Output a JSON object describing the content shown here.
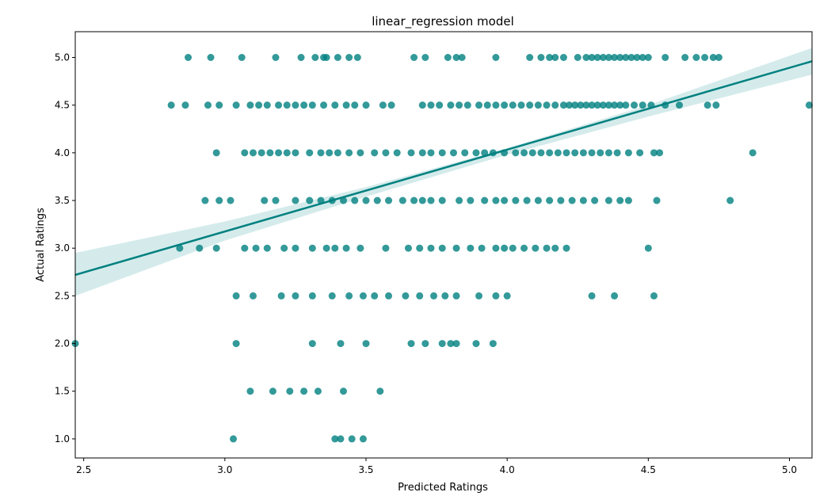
{
  "chart_data": {
    "type": "scatter",
    "title": "linear_regression model",
    "xlabel": "Predicted Ratings",
    "ylabel": "Actual Ratings",
    "xlim": [
      2.47,
      5.08
    ],
    "ylim": [
      0.8,
      5.27
    ],
    "xticks": [
      "2.5",
      "3.0",
      "3.5",
      "4.0",
      "4.5",
      "5.0"
    ],
    "yticks": [
      "1.0",
      "1.5",
      "2.0",
      "2.5",
      "3.0",
      "3.5",
      "4.0",
      "4.5",
      "5.0"
    ],
    "grid": false,
    "legend": "none",
    "point_color": "#008080",
    "line_color": "#008080",
    "band_color": "#b2dada",
    "regression_line": {
      "x": [
        2.47,
        5.08
      ],
      "y": [
        2.72,
        4.96
      ]
    },
    "confidence_band": {
      "x": [
        2.47,
        3.0,
        3.5,
        4.0,
        4.5,
        5.08
      ],
      "lower": [
        2.5,
        3.08,
        3.54,
        3.98,
        4.38,
        4.82
      ],
      "upper": [
        2.95,
        3.28,
        3.64,
        4.05,
        4.5,
        5.1
      ]
    },
    "points": [
      [
        2.87,
        5.0
      ],
      [
        2.95,
        5.0
      ],
      [
        3.06,
        5.0
      ],
      [
        3.18,
        5.0
      ],
      [
        3.27,
        5.0
      ],
      [
        3.32,
        5.0
      ],
      [
        3.35,
        5.0
      ],
      [
        3.36,
        5.0
      ],
      [
        3.4,
        5.0
      ],
      [
        3.44,
        5.0
      ],
      [
        3.47,
        5.0
      ],
      [
        3.67,
        5.0
      ],
      [
        3.71,
        5.0
      ],
      [
        3.79,
        5.0
      ],
      [
        3.82,
        5.0
      ],
      [
        3.84,
        5.0
      ],
      [
        3.96,
        5.0
      ],
      [
        4.08,
        5.0
      ],
      [
        4.12,
        5.0
      ],
      [
        4.15,
        5.0
      ],
      [
        4.17,
        5.0
      ],
      [
        4.2,
        5.0
      ],
      [
        4.25,
        5.0
      ],
      [
        4.28,
        5.0
      ],
      [
        4.3,
        5.0
      ],
      [
        4.32,
        5.0
      ],
      [
        4.34,
        5.0
      ],
      [
        4.36,
        5.0
      ],
      [
        4.38,
        5.0
      ],
      [
        4.4,
        5.0
      ],
      [
        4.42,
        5.0
      ],
      [
        4.44,
        5.0
      ],
      [
        4.46,
        5.0
      ],
      [
        4.48,
        5.0
      ],
      [
        4.5,
        5.0
      ],
      [
        4.56,
        5.0
      ],
      [
        4.63,
        5.0
      ],
      [
        4.67,
        5.0
      ],
      [
        4.7,
        5.0
      ],
      [
        4.73,
        5.0
      ],
      [
        4.75,
        5.0
      ],
      [
        2.81,
        4.5
      ],
      [
        2.86,
        4.5
      ],
      [
        2.94,
        4.5
      ],
      [
        2.98,
        4.5
      ],
      [
        3.04,
        4.5
      ],
      [
        3.09,
        4.5
      ],
      [
        3.12,
        4.5
      ],
      [
        3.15,
        4.5
      ],
      [
        3.19,
        4.5
      ],
      [
        3.22,
        4.5
      ],
      [
        3.25,
        4.5
      ],
      [
        3.28,
        4.5
      ],
      [
        3.31,
        4.5
      ],
      [
        3.35,
        4.5
      ],
      [
        3.39,
        4.5
      ],
      [
        3.43,
        4.5
      ],
      [
        3.46,
        4.5
      ],
      [
        3.5,
        4.5
      ],
      [
        3.56,
        4.5
      ],
      [
        3.59,
        4.5
      ],
      [
        3.7,
        4.5
      ],
      [
        3.73,
        4.5
      ],
      [
        3.76,
        4.5
      ],
      [
        3.8,
        4.5
      ],
      [
        3.83,
        4.5
      ],
      [
        3.86,
        4.5
      ],
      [
        3.9,
        4.5
      ],
      [
        3.93,
        4.5
      ],
      [
        3.96,
        4.5
      ],
      [
        3.99,
        4.5
      ],
      [
        4.02,
        4.5
      ],
      [
        4.05,
        4.5
      ],
      [
        4.08,
        4.5
      ],
      [
        4.11,
        4.5
      ],
      [
        4.14,
        4.5
      ],
      [
        4.17,
        4.5
      ],
      [
        4.2,
        4.5
      ],
      [
        4.22,
        4.5
      ],
      [
        4.24,
        4.5
      ],
      [
        4.26,
        4.5
      ],
      [
        4.28,
        4.5
      ],
      [
        4.3,
        4.5
      ],
      [
        4.32,
        4.5
      ],
      [
        4.34,
        4.5
      ],
      [
        4.36,
        4.5
      ],
      [
        4.38,
        4.5
      ],
      [
        4.4,
        4.5
      ],
      [
        4.42,
        4.5
      ],
      [
        4.45,
        4.5
      ],
      [
        4.48,
        4.5
      ],
      [
        4.51,
        4.5
      ],
      [
        4.56,
        4.5
      ],
      [
        4.61,
        4.5
      ],
      [
        4.71,
        4.5
      ],
      [
        4.74,
        4.5
      ],
      [
        5.07,
        4.5
      ],
      [
        2.97,
        4.0
      ],
      [
        3.07,
        4.0
      ],
      [
        3.1,
        4.0
      ],
      [
        3.13,
        4.0
      ],
      [
        3.16,
        4.0
      ],
      [
        3.19,
        4.0
      ],
      [
        3.22,
        4.0
      ],
      [
        3.25,
        4.0
      ],
      [
        3.3,
        4.0
      ],
      [
        3.34,
        4.0
      ],
      [
        3.37,
        4.0
      ],
      [
        3.4,
        4.0
      ],
      [
        3.44,
        4.0
      ],
      [
        3.48,
        4.0
      ],
      [
        3.53,
        4.0
      ],
      [
        3.57,
        4.0
      ],
      [
        3.61,
        4.0
      ],
      [
        3.66,
        4.0
      ],
      [
        3.7,
        4.0
      ],
      [
        3.73,
        4.0
      ],
      [
        3.77,
        4.0
      ],
      [
        3.81,
        4.0
      ],
      [
        3.85,
        4.0
      ],
      [
        3.89,
        4.0
      ],
      [
        3.92,
        4.0
      ],
      [
        3.95,
        4.0
      ],
      [
        3.99,
        4.0
      ],
      [
        4.03,
        4.0
      ],
      [
        4.06,
        4.0
      ],
      [
        4.09,
        4.0
      ],
      [
        4.12,
        4.0
      ],
      [
        4.15,
        4.0
      ],
      [
        4.18,
        4.0
      ],
      [
        4.21,
        4.0
      ],
      [
        4.24,
        4.0
      ],
      [
        4.27,
        4.0
      ],
      [
        4.3,
        4.0
      ],
      [
        4.33,
        4.0
      ],
      [
        4.36,
        4.0
      ],
      [
        4.39,
        4.0
      ],
      [
        4.43,
        4.0
      ],
      [
        4.47,
        4.0
      ],
      [
        4.52,
        4.0
      ],
      [
        4.54,
        4.0
      ],
      [
        4.87,
        4.0
      ],
      [
        2.93,
        3.5
      ],
      [
        2.98,
        3.5
      ],
      [
        3.02,
        3.5
      ],
      [
        3.14,
        3.5
      ],
      [
        3.18,
        3.5
      ],
      [
        3.25,
        3.5
      ],
      [
        3.3,
        3.5
      ],
      [
        3.34,
        3.5
      ],
      [
        3.38,
        3.5
      ],
      [
        3.42,
        3.5
      ],
      [
        3.46,
        3.5
      ],
      [
        3.5,
        3.5
      ],
      [
        3.54,
        3.5
      ],
      [
        3.58,
        3.5
      ],
      [
        3.63,
        3.5
      ],
      [
        3.67,
        3.5
      ],
      [
        3.7,
        3.5
      ],
      [
        3.73,
        3.5
      ],
      [
        3.77,
        3.5
      ],
      [
        3.83,
        3.5
      ],
      [
        3.87,
        3.5
      ],
      [
        3.92,
        3.5
      ],
      [
        3.96,
        3.5
      ],
      [
        3.99,
        3.5
      ],
      [
        4.03,
        3.5
      ],
      [
        4.07,
        3.5
      ],
      [
        4.11,
        3.5
      ],
      [
        4.15,
        3.5
      ],
      [
        4.19,
        3.5
      ],
      [
        4.23,
        3.5
      ],
      [
        4.27,
        3.5
      ],
      [
        4.31,
        3.5
      ],
      [
        4.36,
        3.5
      ],
      [
        4.4,
        3.5
      ],
      [
        4.43,
        3.5
      ],
      [
        4.53,
        3.5
      ],
      [
        4.79,
        3.5
      ],
      [
        2.84,
        3.0
      ],
      [
        2.91,
        3.0
      ],
      [
        2.97,
        3.0
      ],
      [
        3.07,
        3.0
      ],
      [
        3.11,
        3.0
      ],
      [
        3.15,
        3.0
      ],
      [
        3.21,
        3.0
      ],
      [
        3.25,
        3.0
      ],
      [
        3.31,
        3.0
      ],
      [
        3.36,
        3.0
      ],
      [
        3.39,
        3.0
      ],
      [
        3.43,
        3.0
      ],
      [
        3.48,
        3.0
      ],
      [
        3.57,
        3.0
      ],
      [
        3.65,
        3.0
      ],
      [
        3.69,
        3.0
      ],
      [
        3.73,
        3.0
      ],
      [
        3.77,
        3.0
      ],
      [
        3.82,
        3.0
      ],
      [
        3.87,
        3.0
      ],
      [
        3.91,
        3.0
      ],
      [
        3.96,
        3.0
      ],
      [
        3.99,
        3.0
      ],
      [
        4.02,
        3.0
      ],
      [
        4.06,
        3.0
      ],
      [
        4.1,
        3.0
      ],
      [
        4.14,
        3.0
      ],
      [
        4.17,
        3.0
      ],
      [
        4.21,
        3.0
      ],
      [
        4.5,
        3.0
      ],
      [
        3.04,
        2.5
      ],
      [
        3.1,
        2.5
      ],
      [
        3.2,
        2.5
      ],
      [
        3.25,
        2.5
      ],
      [
        3.31,
        2.5
      ],
      [
        3.38,
        2.5
      ],
      [
        3.44,
        2.5
      ],
      [
        3.49,
        2.5
      ],
      [
        3.53,
        2.5
      ],
      [
        3.58,
        2.5
      ],
      [
        3.64,
        2.5
      ],
      [
        3.69,
        2.5
      ],
      [
        3.74,
        2.5
      ],
      [
        3.78,
        2.5
      ],
      [
        3.82,
        2.5
      ],
      [
        3.9,
        2.5
      ],
      [
        3.96,
        2.5
      ],
      [
        4.0,
        2.5
      ],
      [
        4.3,
        2.5
      ],
      [
        4.38,
        2.5
      ],
      [
        4.52,
        2.5
      ],
      [
        2.47,
        2.0
      ],
      [
        3.04,
        2.0
      ],
      [
        3.31,
        2.0
      ],
      [
        3.41,
        2.0
      ],
      [
        3.5,
        2.0
      ],
      [
        3.66,
        2.0
      ],
      [
        3.71,
        2.0
      ],
      [
        3.77,
        2.0
      ],
      [
        3.8,
        2.0
      ],
      [
        3.82,
        2.0
      ],
      [
        3.89,
        2.0
      ],
      [
        3.95,
        2.0
      ],
      [
        3.09,
        1.5
      ],
      [
        3.17,
        1.5
      ],
      [
        3.23,
        1.5
      ],
      [
        3.28,
        1.5
      ],
      [
        3.33,
        1.5
      ],
      [
        3.42,
        1.5
      ],
      [
        3.55,
        1.5
      ],
      [
        3.03,
        1.0
      ],
      [
        3.39,
        1.0
      ],
      [
        3.41,
        1.0
      ],
      [
        3.45,
        1.0
      ],
      [
        3.49,
        1.0
      ]
    ]
  }
}
